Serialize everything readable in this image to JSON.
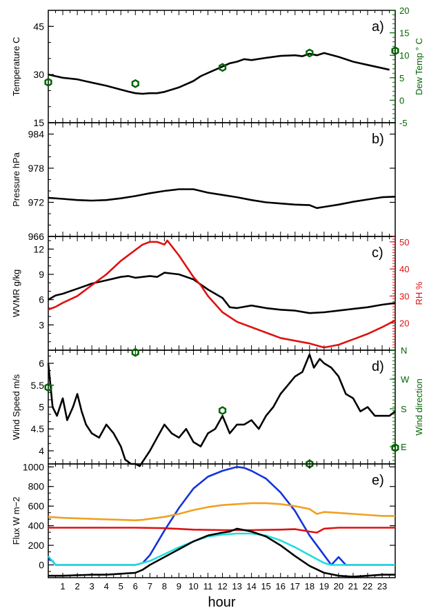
{
  "chart_data": [
    {
      "type": "line",
      "panel_label": "a)",
      "ylabel": "Temperature C",
      "ylim": [
        15,
        50
      ],
      "yticks": [
        15,
        30,
        45
      ],
      "y2label": "Dew Temp ° C",
      "y2lim": [
        -5,
        20
      ],
      "y2ticks": [
        -5,
        0,
        5,
        10,
        15,
        20
      ],
      "colors": {
        "primary": "#000000",
        "secondary": "#006400"
      },
      "series": [
        {
          "name": "Temperature",
          "axis": "left",
          "color": "#000000",
          "x": [
            0,
            0.5,
            1,
            2,
            3,
            4,
            5,
            5.5,
            6,
            6.5,
            7,
            7.5,
            8,
            9,
            10,
            10.5,
            11,
            11.5,
            12,
            12.5,
            13,
            13.5,
            14,
            15,
            16,
            17,
            17.5,
            18,
            18.5,
            19,
            20,
            21,
            22,
            23,
            23.5
          ],
          "y": [
            30,
            29.5,
            29,
            28.5,
            27.5,
            26.5,
            25.3,
            24.7,
            24.2,
            24,
            24.2,
            24.2,
            24.6,
            26,
            28,
            29.5,
            30.5,
            31.5,
            32.5,
            33.5,
            34,
            34.8,
            34.5,
            35.2,
            35.8,
            36,
            35.7,
            36.5,
            36,
            36.7,
            35.5,
            34,
            33,
            32,
            31.5
          ]
        },
        {
          "name": "Dew Temp",
          "axis": "right",
          "marker": "hexagon",
          "color": "#006400",
          "x": [
            0,
            6,
            12,
            18,
            23.9
          ],
          "y": [
            4,
            3.7,
            7.3,
            10.5,
            11
          ]
        }
      ]
    },
    {
      "type": "line",
      "panel_label": "b)",
      "ylabel": "Pressure hPa",
      "ylim": [
        966,
        986
      ],
      "yticks": [
        966,
        972,
        978,
        984
      ],
      "series": [
        {
          "name": "Pressure",
          "color": "#000000",
          "x": [
            0,
            1,
            2,
            3,
            4,
            5,
            6,
            7,
            8,
            9,
            10,
            11,
            12,
            13,
            14,
            15,
            16,
            17,
            18,
            18.5,
            19,
            20,
            21,
            22,
            23,
            23.9
          ],
          "y": [
            972.8,
            972.6,
            972.4,
            972.3,
            972.4,
            972.7,
            973.1,
            973.6,
            974,
            974.3,
            974.3,
            973.7,
            973.3,
            972.9,
            972.4,
            972,
            971.8,
            971.6,
            971.5,
            971,
            971.2,
            971.6,
            972.1,
            972.5,
            972.9,
            973
          ]
        }
      ]
    },
    {
      "type": "line",
      "panel_label": "c)",
      "ylabel": "WVMR g/kg",
      "ylim": [
        0,
        13.5
      ],
      "yticks": [
        3,
        6,
        9,
        12
      ],
      "y2label": "RH %",
      "y2lim": [
        10,
        52
      ],
      "y2ticks": [
        20,
        30,
        40,
        50
      ],
      "colors": {
        "primary": "#000000",
        "secondary": "#dd1111"
      },
      "series": [
        {
          "name": "WVMR",
          "axis": "left",
          "color": "#000000",
          "x": [
            0,
            0.5,
            1,
            2,
            3,
            4,
            5,
            5.5,
            6,
            7,
            7.5,
            8,
            9,
            10,
            11,
            12,
            12.5,
            13,
            14,
            15,
            16,
            17,
            18,
            19,
            20,
            21,
            22,
            23,
            23.9
          ],
          "y": [
            6,
            6.5,
            6.7,
            7.3,
            7.9,
            8.3,
            8.7,
            8.8,
            8.6,
            8.8,
            8.7,
            9.2,
            9,
            8.4,
            7.2,
            6.2,
            5.1,
            5,
            5.3,
            5,
            4.8,
            4.7,
            4.4,
            4.5,
            4.7,
            4.9,
            5.1,
            5.4,
            5.6
          ]
        },
        {
          "name": "RH",
          "axis": "right",
          "color": "#dd1111",
          "x": [
            0,
            0.5,
            1,
            2,
            3,
            4,
            5,
            6,
            6.5,
            7,
            7.5,
            8,
            8.2,
            9,
            10,
            10.5,
            11,
            12,
            13,
            14,
            15,
            16,
            17,
            18,
            19,
            20,
            21,
            22,
            23,
            23.9
          ],
          "y": [
            25,
            26,
            27.5,
            30,
            34,
            38,
            43,
            47,
            49,
            50,
            50,
            49,
            50.5,
            45,
            37,
            34,
            30,
            24,
            20.5,
            18.5,
            16.5,
            14.5,
            13.5,
            12.5,
            11,
            12,
            14,
            16,
            18.5,
            21
          ]
        }
      ]
    },
    {
      "type": "line",
      "panel_label": "d)",
      "ylabel": "Wind Speed m/s",
      "ylim": [
        3.7,
        6.3
      ],
      "yticks": [
        4.0,
        4.5,
        5.0,
        5.5,
        6.0
      ],
      "y2label": "Wind direction",
      "y2ticks": [
        "E",
        "S",
        "W",
        "N"
      ],
      "colors": {
        "primary": "#000000",
        "secondary": "#006400"
      },
      "series": [
        {
          "name": "Wind Speed",
          "axis": "left",
          "color": "#000000",
          "x": [
            0,
            0.3,
            0.6,
            1,
            1.3,
            1.7,
            2,
            2.3,
            2.6,
            3,
            3.5,
            4,
            4.5,
            5,
            5.3,
            5.7,
            6,
            6.3,
            6.6,
            7,
            7.5,
            8,
            8.5,
            9,
            9.5,
            10,
            10.5,
            11,
            11.5,
            12,
            12.5,
            13,
            13.5,
            14,
            14.5,
            15,
            15.5,
            16,
            16.5,
            17,
            17.5,
            18,
            18.3,
            18.7,
            19,
            19.5,
            20,
            20.5,
            21,
            21.5,
            22,
            22.5,
            23,
            23.5,
            23.9
          ],
          "y": [
            6,
            5,
            4.8,
            5.2,
            4.7,
            5,
            5.3,
            4.9,
            4.6,
            4.4,
            4.3,
            4.6,
            4.4,
            4.1,
            3.8,
            3.7,
            3.7,
            3.65,
            3.8,
            4,
            4.3,
            4.6,
            4.4,
            4.3,
            4.5,
            4.2,
            4.1,
            4.4,
            4.5,
            4.8,
            4.4,
            4.6,
            4.6,
            4.7,
            4.5,
            4.8,
            5,
            5.3,
            5.5,
            5.7,
            5.8,
            6.2,
            5.9,
            6.1,
            6.0,
            5.9,
            5.7,
            5.3,
            5.2,
            4.9,
            5.0,
            4.8,
            4.8,
            4.8,
            4.9
          ]
        },
        {
          "name": "Wind direction",
          "axis": "right",
          "marker": "hexagon",
          "color": "#006400",
          "x": [
            0,
            6,
            12,
            18,
            23.9
          ],
          "y": [
            5.45,
            6.25,
            4.92,
            3.7,
            4.07
          ]
        }
      ]
    },
    {
      "type": "line",
      "panel_label": "e)",
      "ylabel": "Flux W m−2",
      "ylim": [
        -130,
        1030
      ],
      "yticks": [
        0,
        200,
        400,
        600,
        800,
        1000
      ],
      "series": [
        {
          "name": "blue",
          "color": "#1133dd",
          "x": [
            0,
            0.3,
            0.5,
            1,
            2,
            3,
            4,
            5,
            6,
            6.5,
            7,
            8,
            9,
            10,
            11,
            12,
            12.5,
            13,
            13.5,
            14,
            15,
            16,
            17,
            18,
            19,
            19.5,
            20,
            20.5,
            21,
            22,
            23,
            23.9
          ],
          "y": [
            60,
            40,
            0,
            0,
            0,
            0,
            0,
            0,
            0,
            20,
            100,
            350,
            580,
            780,
            900,
            960,
            980,
            1000,
            990,
            960,
            880,
            740,
            550,
            300,
            100,
            0,
            80,
            0,
            0,
            0,
            0,
            0
          ]
        },
        {
          "name": "orange",
          "color": "#f0a020",
          "x": [
            0,
            1,
            2,
            3,
            4,
            5,
            6,
            6.5,
            7,
            8,
            9,
            10,
            11,
            12,
            13,
            14,
            15,
            16,
            17,
            18,
            18.5,
            19,
            20,
            21,
            22,
            23,
            23.9
          ],
          "y": [
            490,
            480,
            475,
            470,
            465,
            460,
            455,
            460,
            470,
            490,
            520,
            560,
            590,
            610,
            620,
            630,
            630,
            620,
            600,
            570,
            520,
            540,
            530,
            520,
            510,
            500,
            500
          ]
        },
        {
          "name": "red",
          "color": "#dd1111",
          "x": [
            0,
            2,
            4,
            6,
            8,
            10,
            12,
            14,
            16,
            17,
            18,
            18.5,
            19,
            20,
            22,
            23.9
          ],
          "y": [
            380,
            380,
            380,
            380,
            375,
            360,
            355,
            355,
            360,
            365,
            340,
            330,
            370,
            380,
            380,
            380
          ]
        },
        {
          "name": "cyan",
          "color": "#22dddd",
          "x": [
            0,
            0.5,
            1,
            2,
            3,
            4,
            5,
            6,
            7,
            8,
            9,
            10,
            11,
            12,
            13,
            14,
            15,
            16,
            17,
            18,
            19,
            19.5,
            20,
            21,
            22,
            23,
            23.9
          ],
          "y": [
            90,
            0,
            0,
            0,
            0,
            0,
            0,
            0,
            40,
            110,
            180,
            240,
            290,
            310,
            320,
            320,
            300,
            250,
            180,
            100,
            20,
            0,
            0,
            0,
            0,
            0,
            0
          ]
        },
        {
          "name": "black",
          "color": "#000000",
          "x": [
            0,
            1,
            2,
            3,
            4,
            5,
            6,
            6.5,
            7,
            8,
            9,
            10,
            11,
            12,
            12.5,
            13,
            14,
            15,
            16,
            17,
            18,
            19,
            20,
            21,
            22,
            23,
            23.9
          ],
          "y": [
            -110,
            -110,
            -105,
            -100,
            -100,
            -90,
            -80,
            -50,
            0,
            80,
            160,
            240,
            300,
            330,
            340,
            370,
            340,
            290,
            200,
            90,
            -10,
            -80,
            -110,
            -120,
            -110,
            -100,
            -100
          ]
        }
      ]
    }
  ],
  "xaxis": {
    "label": "hour",
    "xlim": [
      0,
      23.9
    ],
    "ticks": [
      "1",
      "2",
      "3",
      "4",
      "5",
      "6",
      "7",
      "8",
      "9",
      "10",
      "11",
      "12",
      "13",
      "14",
      "15",
      "16",
      "17",
      "18",
      "19",
      "20",
      "21",
      "22",
      "23"
    ]
  }
}
